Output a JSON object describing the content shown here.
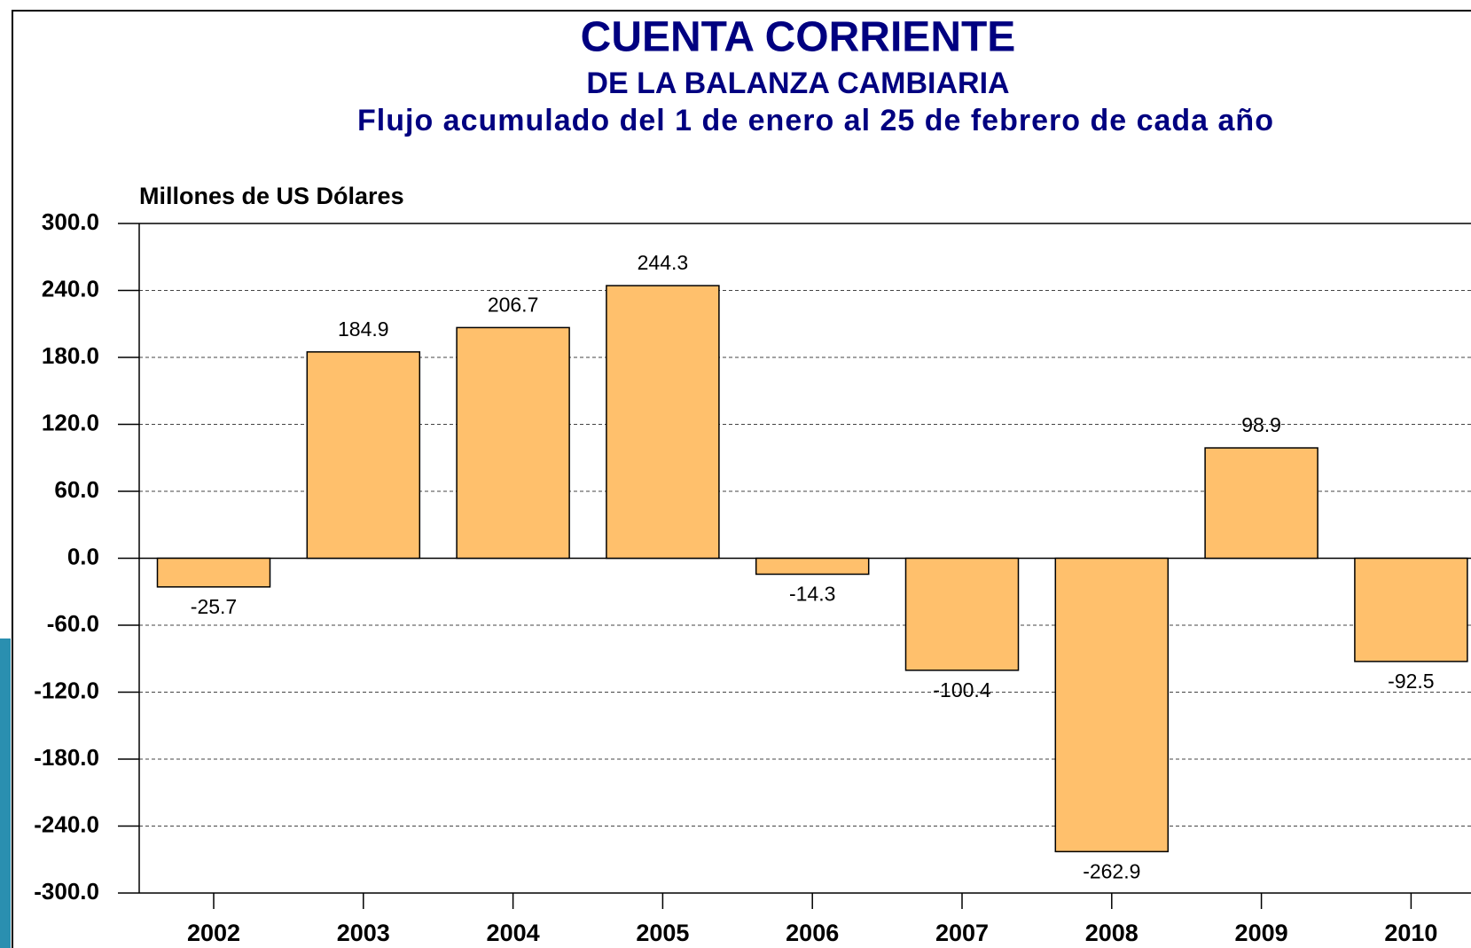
{
  "chart_data": {
    "type": "bar",
    "title": "CUENTA CORRIENTE",
    "subtitle": "DE LA BALANZA CAMBIARIA",
    "subtitle2": "Flujo acumulado del 1 de enero al 25 de febrero de cada año",
    "y_label": "Millones de US Dólares",
    "categories": [
      "2002",
      "2003",
      "2004",
      "2005",
      "2006",
      "2007",
      "2008",
      "2009",
      "2010"
    ],
    "values": [
      -25.7,
      184.9,
      206.7,
      244.3,
      -14.3,
      -100.4,
      -262.9,
      98.9,
      -92.5
    ],
    "color": "#ffc06c",
    "ylim": [
      -300,
      300
    ],
    "yticks": [
      {
        "value": 300,
        "label": "300.0"
      },
      {
        "value": 240,
        "label": "240.0"
      },
      {
        "value": 180,
        "label": "180.0"
      },
      {
        "value": 120,
        "label": "120.0"
      },
      {
        "value": 60,
        "label": "60.0"
      },
      {
        "value": 0,
        "label": "0.0"
      },
      {
        "value": -60,
        "label": "-60.0"
      },
      {
        "value": -120,
        "label": "-120.0"
      },
      {
        "value": -180,
        "label": "-180.0"
      },
      {
        "value": -240,
        "label": "-240.0"
      },
      {
        "value": -300,
        "label": "-300.0"
      }
    ],
    "grid": true
  }
}
